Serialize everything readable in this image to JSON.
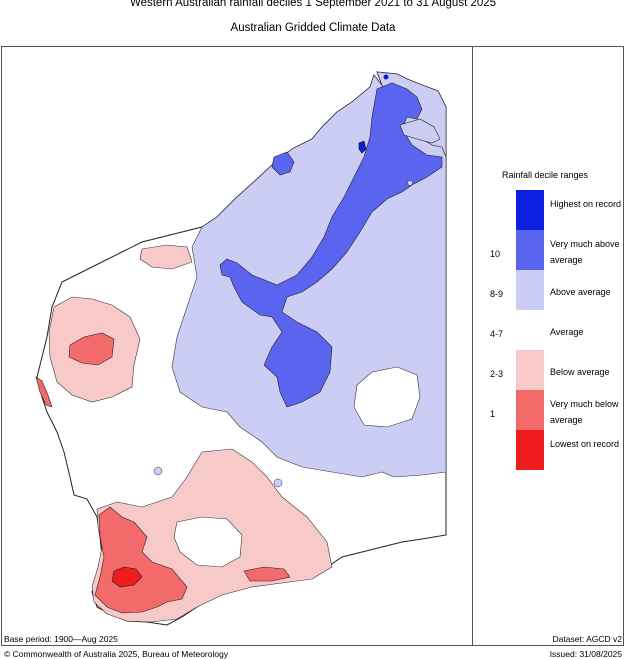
{
  "header": {
    "title": "Western Australian rainfall deciles     1 September 2021 to 31 August 2025",
    "subtitle": "Australian Gridded Climate Data"
  },
  "legend": {
    "title": "Rainfall decile ranges",
    "items": [
      {
        "label": "Highest on record",
        "color": "#0a1fe0",
        "decile": ""
      },
      {
        "label": "Very much above average",
        "color": "#5a64ef",
        "decile": "10"
      },
      {
        "label": "Above average",
        "color": "#cbcdf5",
        "decile": "8-9"
      },
      {
        "label": "Average",
        "color": "#ffffff",
        "decile": "4-7"
      },
      {
        "label": "Below average",
        "color": "#f7c9c9",
        "decile": "2-3"
      },
      {
        "label": "Very much below average",
        "color": "#f26a6a",
        "decile": "1"
      },
      {
        "label": "Lowest on record",
        "color": "#ee1c1c",
        "decile": ""
      }
    ]
  },
  "footer": {
    "base_period": "Base period: 1900—Aug 2025",
    "dataset": "Dataset: AGCD v2",
    "copyright": "© Commonwealth of Australia 2025, Bureau of Meteorology",
    "issued": "Issued: 31/08/2025"
  }
}
